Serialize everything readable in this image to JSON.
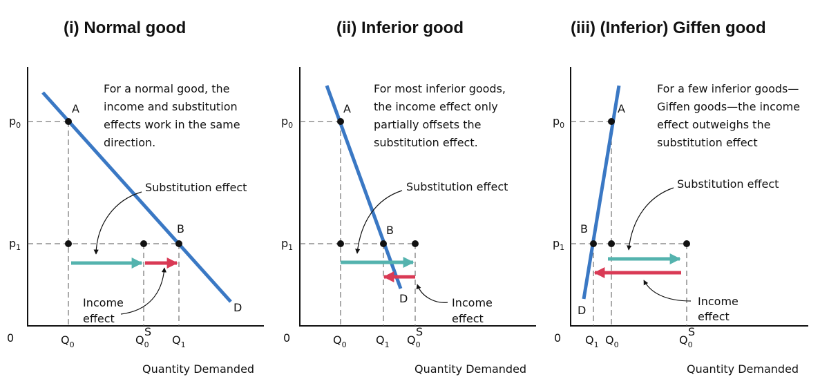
{
  "colors": {
    "curve": "#3a78c4",
    "substitution": "#54b3ae",
    "income": "#d93a55",
    "axis": "#111111"
  },
  "x_axis_label": "Quantity Demanded",
  "origin_label": "0",
  "panels": [
    {
      "title": "(i)  Normal good",
      "note": [
        "For a normal good, the",
        "income and substitution",
        "effects work in the same",
        "direction."
      ],
      "p0": "p",
      "p0_sub": "0",
      "p1": "p",
      "p1_sub": "1",
      "point_a": "A",
      "point_b": "B",
      "curve_end": "D",
      "q_labels": [
        {
          "base": "Q",
          "sub": "0",
          "sup": ""
        },
        {
          "base": "Q",
          "sub": "0",
          "sup": "S"
        },
        {
          "base": "Q",
          "sub": "1",
          "sup": ""
        }
      ],
      "substitution_label": "Substitution effect",
      "income_label": [
        "Income",
        "effect"
      ]
    },
    {
      "title": "(ii)  Inferior good",
      "note": [
        "For most inferior goods,",
        "the income effect only",
        "partially offsets the",
        "substitution effect."
      ],
      "p0": "p",
      "p0_sub": "0",
      "p1": "p",
      "p1_sub": "1",
      "point_a": "A",
      "point_b": "B",
      "curve_end": "D",
      "q_labels": [
        {
          "base": "Q",
          "sub": "0",
          "sup": ""
        },
        {
          "base": "Q",
          "sub": "1",
          "sup": ""
        },
        {
          "base": "Q",
          "sub": "0",
          "sup": "S"
        }
      ],
      "substitution_label": "Substitution effect",
      "income_label": [
        "Income",
        "effect"
      ]
    },
    {
      "title": "(iii)  (Inferior) Giffen good",
      "note": [
        "For a few inferior goods—",
        "Giffen goods—the income",
        "effect outweighs the",
        "substitution effect"
      ],
      "p0": "p",
      "p0_sub": "0",
      "p1": "p",
      "p1_sub": "1",
      "point_a": "A",
      "point_b": "B",
      "curve_end": "D",
      "q_labels": [
        {
          "base": "Q",
          "sub": "1",
          "sup": ""
        },
        {
          "base": "Q",
          "sub": "0",
          "sup": ""
        },
        {
          "base": "Q",
          "sub": "0",
          "sup": "S"
        }
      ],
      "substitution_label": "Substitution effect",
      "income_label": [
        "Income",
        "effect"
      ]
    }
  ]
}
